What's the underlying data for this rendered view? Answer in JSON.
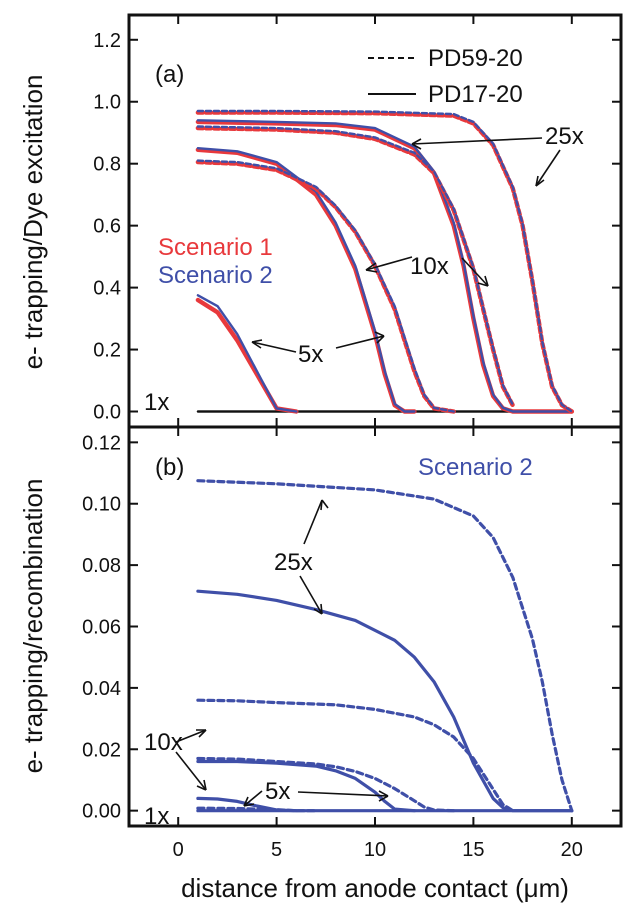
{
  "chart_data": [
    {
      "panel": "(a)",
      "type": "line",
      "ylabel": "e- trapping/Dye excitation",
      "xlim": [
        -2.5,
        22.5
      ],
      "ylim": [
        -0.05,
        1.28
      ],
      "xticks": [
        0,
        5,
        10,
        15,
        20
      ],
      "yticks": [
        0.0,
        0.2,
        0.4,
        0.6,
        0.8,
        1.0,
        1.2
      ],
      "ytick_labels": [
        "0.0",
        "0.2",
        "0.4",
        "0.6",
        "0.8",
        "1.0",
        "1.2"
      ],
      "legend": {
        "position": "top-right",
        "entries": [
          {
            "label": "PD59-20",
            "style": "dashed"
          },
          {
            "label": "PD17-20",
            "style": "solid"
          }
        ]
      },
      "scenario_labels": [
        {
          "label": "Scenario 1",
          "color": "#e8393c"
        },
        {
          "label": "Scenario 2",
          "color": "#3f4fa8"
        }
      ],
      "annotations": [
        "25x",
        "10x",
        "5x",
        "1x"
      ],
      "series": [
        {
          "group": "1x",
          "style": "solid",
          "scenario": 1,
          "x": [
            1,
            20
          ],
          "y": [
            0,
            0
          ]
        },
        {
          "group": "1x",
          "style": "solid",
          "scenario": 2,
          "x": [
            1,
            20
          ],
          "y": [
            0,
            0
          ]
        },
        {
          "group": "5x",
          "style": "solid",
          "scenario": 1,
          "x": [
            1,
            2,
            3,
            4,
            5,
            6
          ],
          "y": [
            0.36,
            0.32,
            0.23,
            0.12,
            0.01,
            0.0
          ]
        },
        {
          "group": "5x",
          "style": "solid",
          "scenario": 2,
          "x": [
            1,
            2,
            3,
            4,
            5,
            6
          ],
          "y": [
            0.375,
            0.34,
            0.25,
            0.13,
            0.01,
            0.0
          ]
        },
        {
          "group": "10x",
          "style": "solid",
          "scenario": 1,
          "x": [
            1,
            3,
            5,
            7,
            8,
            9,
            10,
            10.5,
            11,
            11.5,
            12
          ],
          "y": [
            0.845,
            0.835,
            0.8,
            0.7,
            0.6,
            0.46,
            0.25,
            0.12,
            0.02,
            0.0,
            0.0
          ]
        },
        {
          "group": "10x",
          "style": "solid",
          "scenario": 2,
          "x": [
            1,
            3,
            5,
            7,
            8,
            9,
            10,
            10.5,
            11,
            11.5,
            12
          ],
          "y": [
            0.85,
            0.84,
            0.805,
            0.71,
            0.61,
            0.47,
            0.26,
            0.13,
            0.025,
            0.0,
            0.0
          ]
        },
        {
          "group": "10x",
          "style": "dashed",
          "scenario": 1,
          "x": [
            1,
            3,
            5,
            7,
            8,
            9,
            10,
            11,
            11.5,
            12,
            12.5,
            13,
            14
          ],
          "y": [
            0.805,
            0.8,
            0.78,
            0.72,
            0.66,
            0.58,
            0.47,
            0.33,
            0.23,
            0.13,
            0.05,
            0.01,
            0.0
          ]
        },
        {
          "group": "10x",
          "style": "dashed",
          "scenario": 2,
          "x": [
            1,
            3,
            5,
            7,
            8,
            9,
            10,
            11,
            11.5,
            12,
            12.5,
            13,
            14
          ],
          "y": [
            0.81,
            0.805,
            0.785,
            0.725,
            0.665,
            0.585,
            0.475,
            0.34,
            0.24,
            0.14,
            0.055,
            0.012,
            0.0
          ]
        },
        {
          "group": "25x",
          "style": "solid",
          "scenario": 1,
          "x": [
            1,
            5,
            8,
            10,
            12,
            13,
            14,
            14.5,
            15,
            15.5,
            16,
            16.5,
            17,
            20
          ],
          "y": [
            0.935,
            0.93,
            0.925,
            0.91,
            0.85,
            0.77,
            0.6,
            0.47,
            0.3,
            0.15,
            0.05,
            0.01,
            0.0,
            0.0
          ]
        },
        {
          "group": "25x",
          "style": "solid",
          "scenario": 2,
          "x": [
            1,
            5,
            8,
            10,
            12,
            13,
            14,
            14.5,
            15,
            15.5,
            16,
            16.5,
            17,
            20
          ],
          "y": [
            0.94,
            0.935,
            0.93,
            0.915,
            0.855,
            0.775,
            0.61,
            0.48,
            0.31,
            0.16,
            0.055,
            0.012,
            0.0,
            0.0
          ]
        },
        {
          "group": "25x",
          "style": "dashed",
          "scenario": 1,
          "x": [
            1,
            5,
            8,
            10,
            12,
            13,
            14,
            15,
            15.5,
            16,
            16.5,
            17
          ],
          "y": [
            0.915,
            0.91,
            0.9,
            0.88,
            0.83,
            0.77,
            0.65,
            0.46,
            0.33,
            0.2,
            0.08,
            0.02
          ]
        },
        {
          "group": "25x",
          "style": "dashed",
          "scenario": 2,
          "x": [
            1,
            5,
            8,
            10,
            12,
            13,
            14,
            15,
            15.5,
            16,
            16.5,
            17
          ],
          "y": [
            0.92,
            0.915,
            0.905,
            0.885,
            0.835,
            0.775,
            0.655,
            0.465,
            0.335,
            0.205,
            0.085,
            0.022
          ]
        },
        {
          "group": "25x",
          "style": "dashed",
          "scenario": 1,
          "x": [
            1,
            5,
            10,
            14,
            15,
            16,
            17,
            17.5,
            18,
            18.5,
            19,
            19.5,
            20
          ],
          "y": [
            0.965,
            0.965,
            0.963,
            0.955,
            0.93,
            0.86,
            0.72,
            0.6,
            0.42,
            0.22,
            0.08,
            0.02,
            0.0
          ]
        },
        {
          "group": "25x",
          "style": "dashed",
          "scenario": 2,
          "x": [
            1,
            5,
            10,
            14,
            15,
            16,
            17,
            17.5,
            18,
            18.5,
            19,
            19.5,
            20
          ],
          "y": [
            0.97,
            0.97,
            0.968,
            0.96,
            0.935,
            0.865,
            0.725,
            0.605,
            0.425,
            0.225,
            0.085,
            0.022,
            0.0
          ]
        }
      ]
    },
    {
      "panel": "(b)",
      "type": "line",
      "ylabel": "e- trapping/recombination",
      "xlabel": "distance from anode contact (μm)",
      "xlim": [
        -2.5,
        22.5
      ],
      "ylim": [
        -0.005,
        0.125
      ],
      "xticks": [
        0,
        5,
        10,
        15,
        20
      ],
      "yticks": [
        0.0,
        0.02,
        0.04,
        0.06,
        0.08,
        0.1,
        0.12
      ],
      "ytick_labels": [
        "0.00",
        "0.02",
        "0.04",
        "0.06",
        "0.08",
        "0.10",
        "0.12"
      ],
      "scenario_label": "Scenario 2",
      "annotations": [
        "25x",
        "10x",
        "5x",
        "1x"
      ],
      "series": [
        {
          "group": "1x",
          "style": "solid",
          "x": [
            1,
            20
          ],
          "y": [
            0,
            0
          ]
        },
        {
          "group": "5x",
          "style": "solid",
          "x": [
            1,
            2,
            3,
            4,
            5,
            6
          ],
          "y": [
            0.004,
            0.0038,
            0.003,
            0.0015,
            0.0002,
            0.0
          ]
        },
        {
          "group": "5x",
          "style": "dashed",
          "x": [
            1,
            3,
            5,
            6,
            7
          ],
          "y": [
            0.0008,
            0.0007,
            0.0003,
            0.0,
            0.0
          ]
        },
        {
          "group": "10x",
          "style": "solid",
          "x": [
            1,
            3,
            5,
            7,
            8,
            9,
            10,
            10.5,
            11,
            12
          ],
          "y": [
            0.016,
            0.016,
            0.0155,
            0.0145,
            0.013,
            0.0105,
            0.006,
            0.003,
            0.0005,
            0.0
          ]
        },
        {
          "group": "10x",
          "style": "dashed",
          "x": [
            1,
            3,
            5,
            7,
            8,
            9,
            10,
            11,
            12,
            12.5,
            13,
            14
          ],
          "y": [
            0.017,
            0.0168,
            0.016,
            0.0152,
            0.0143,
            0.0128,
            0.0105,
            0.0072,
            0.0032,
            0.0012,
            0.0002,
            0.0
          ]
        },
        {
          "group": "10x",
          "style": "dashed",
          "x": [
            1,
            3,
            5,
            8,
            10,
            12,
            13,
            14,
            15,
            16,
            16.5,
            17
          ],
          "y": [
            0.036,
            0.0358,
            0.0352,
            0.0345,
            0.033,
            0.0305,
            0.028,
            0.024,
            0.017,
            0.007,
            0.002,
            0.0
          ]
        },
        {
          "group": "25x",
          "style": "solid",
          "x": [
            1,
            3,
            5,
            7,
            9,
            11,
            12,
            13,
            14,
            15,
            16,
            16.5,
            17,
            20
          ],
          "y": [
            0.0715,
            0.0705,
            0.0685,
            0.0655,
            0.062,
            0.0555,
            0.05,
            0.042,
            0.0305,
            0.0155,
            0.004,
            0.001,
            0.0,
            0.0
          ]
        },
        {
          "group": "25x",
          "style": "dashed",
          "x": [
            1,
            5,
            10,
            13,
            15,
            16,
            17,
            18,
            18.5,
            19,
            19.5,
            20
          ],
          "y": [
            0.1075,
            0.1065,
            0.1045,
            0.1015,
            0.096,
            0.089,
            0.076,
            0.056,
            0.042,
            0.025,
            0.01,
            0.0
          ]
        }
      ]
    }
  ]
}
